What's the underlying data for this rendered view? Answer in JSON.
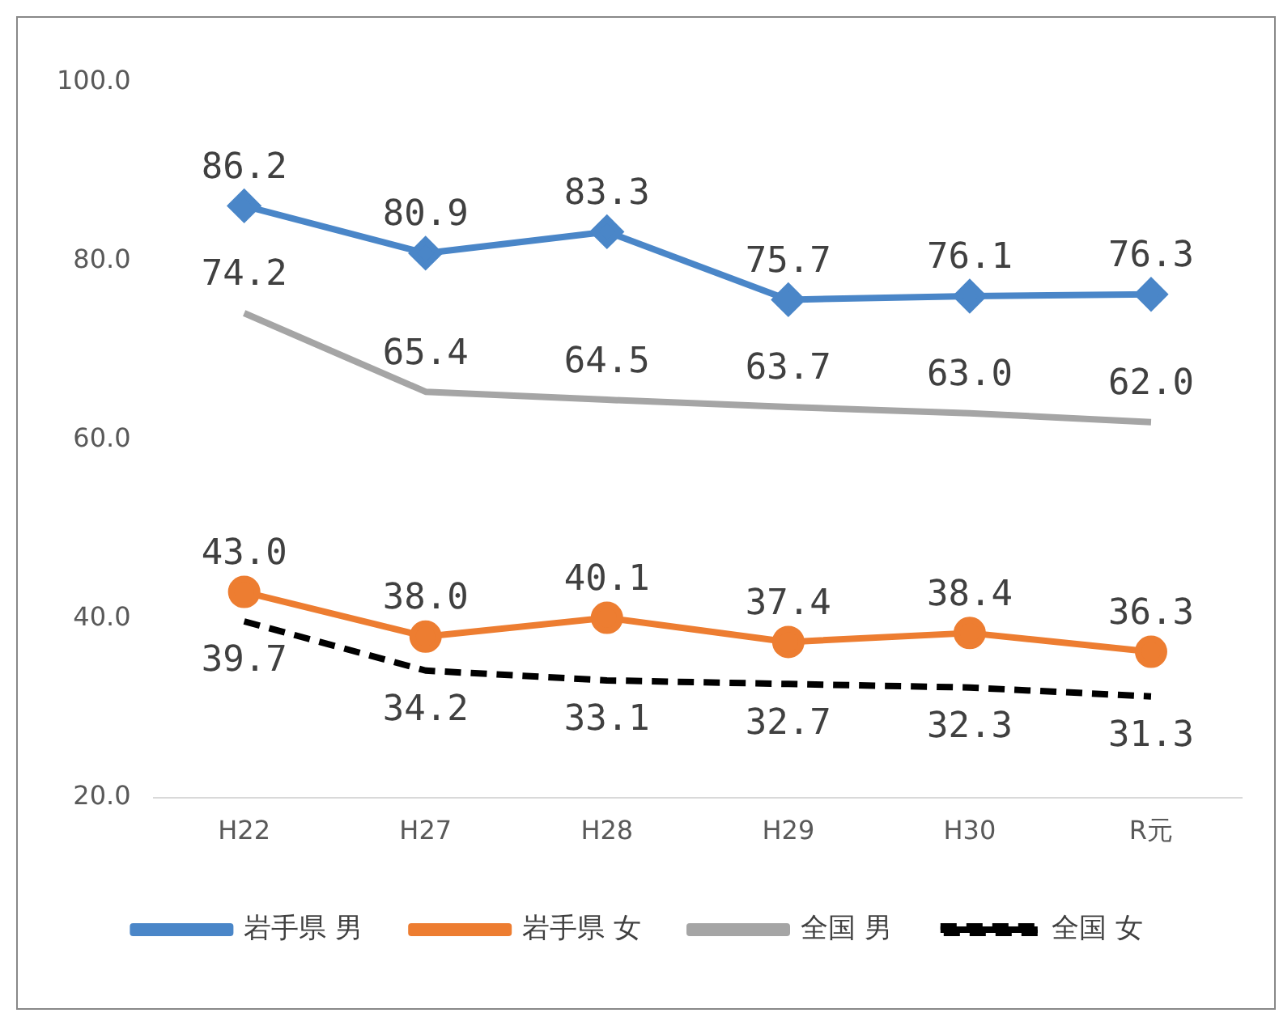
{
  "chart_data": {
    "type": "line",
    "categories": [
      "H22",
      "H27",
      "H28",
      "H29",
      "H30",
      "R元"
    ],
    "series": [
      {
        "name": "岩手県 男",
        "color": "#4a86c8",
        "marker": "diamond",
        "line_style": "solid",
        "values": [
          86.2,
          80.9,
          83.3,
          75.7,
          76.1,
          76.3
        ],
        "value_labels": [
          "86.2",
          "80.9",
          "83.3",
          "75.7",
          "76.1",
          "76.3"
        ]
      },
      {
        "name": "岩手県 女",
        "color": "#ed7d31",
        "marker": "circle",
        "line_style": "solid",
        "values": [
          43.0,
          38.0,
          40.1,
          37.4,
          38.4,
          36.3
        ],
        "value_labels": [
          "43.0",
          "38.0",
          "40.1",
          "37.4",
          "38.4",
          "36.3"
        ]
      },
      {
        "name": "全国 男",
        "color": "#a5a5a5",
        "marker": "none",
        "line_style": "solid",
        "values": [
          74.2,
          65.4,
          64.5,
          63.7,
          63.0,
          62.0
        ],
        "value_labels": [
          "74.2",
          "65.4",
          "64.5",
          "63.7",
          "63.0",
          "62.0"
        ]
      },
      {
        "name": "全国 女",
        "color": "#000000",
        "marker": "none",
        "line_style": "dashed",
        "values": [
          39.7,
          34.2,
          33.1,
          32.7,
          32.3,
          31.3
        ],
        "value_labels": [
          "39.7",
          "34.2",
          "33.1",
          "32.7",
          "32.3",
          "31.3"
        ]
      }
    ],
    "ylim": [
      20,
      100
    ],
    "yticks": [
      {
        "value": 20,
        "label": "20.0"
      },
      {
        "value": 40,
        "label": "40.0"
      },
      {
        "value": 60,
        "label": "60.0"
      },
      {
        "value": 80,
        "label": "80.0"
      },
      {
        "value": 100,
        "label": "100.0"
      }
    ],
    "grid": false,
    "legend": "bottom"
  }
}
